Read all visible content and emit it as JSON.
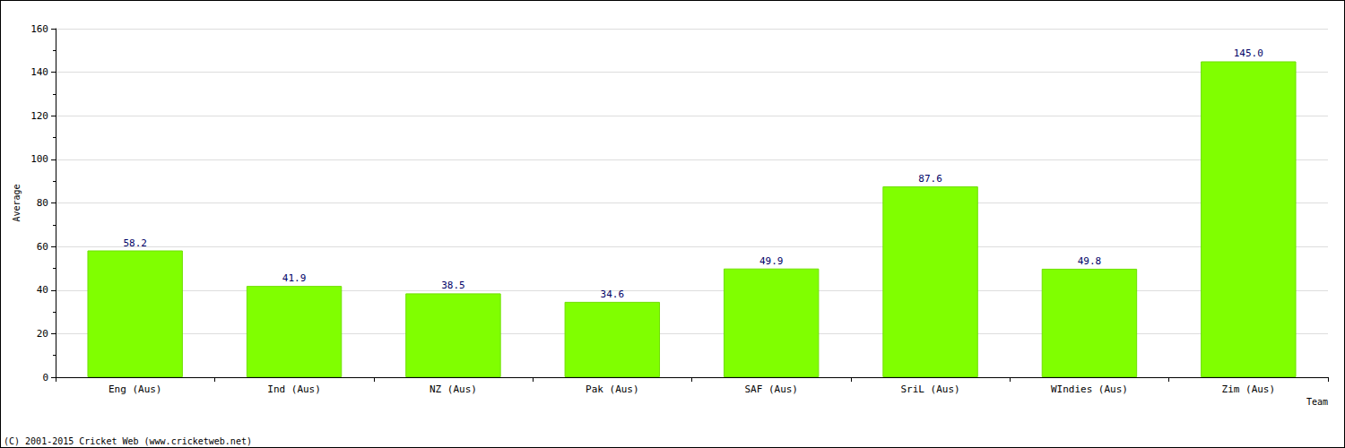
{
  "chart_data": {
    "type": "bar",
    "x_label": "Team",
    "y_label": "Average",
    "annotations": [
      "(C) 2001-2015 Cricket Web (www.cricketweb.net)"
    ],
    "categories": [
      "Eng (Aus)",
      "Ind (Aus)",
      "NZ (Aus)",
      "Pak (Aus)",
      "SAF (Aus)",
      "SriL (Aus)",
      "WIndies (Aus)",
      "Zim (Aus)"
    ],
    "values": [
      58.2,
      41.9,
      38.5,
      34.6,
      49.9,
      87.6,
      49.8,
      145.0
    ],
    "value_labels": [
      "58.2",
      "41.9",
      "38.5",
      "34.6",
      "49.9",
      "87.6",
      "49.8",
      "145.0"
    ],
    "color": "#80ff00",
    "ylim": [
      0,
      160
    ],
    "yticks": [
      0,
      20,
      40,
      60,
      80,
      100,
      120,
      140,
      160
    ],
    "grid": true,
    "data_labels": true
  }
}
